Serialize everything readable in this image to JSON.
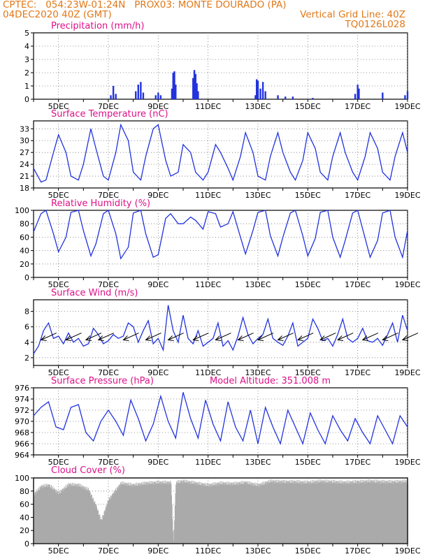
{
  "header": {
    "line1": "CPTEC:   054:23W-01:24N   PROX03: MONTE DOURADO (PA)",
    "line2": "04DEC2020 40Z (GMT)",
    "grid_note": "Vertical Grid Line: 40Z",
    "code": "TQ0126L028"
  },
  "colors": {
    "line": "#2233dd",
    "title": "#dd1188",
    "header": "#e07818",
    "cloud": "#aaaaaa"
  },
  "x_axis": {
    "start_day": 4,
    "end_day": 19,
    "tick_labels": [
      "5DEC",
      "7DEC",
      "9DEC",
      "11DEC",
      "13DEC",
      "15DEC",
      "17DEC",
      "19DEC"
    ],
    "tick_days": [
      5,
      7,
      9,
      11,
      13,
      15,
      17,
      19
    ]
  },
  "chart_data": [
    {
      "type": "bar",
      "title": "Precipitation (mm/h)",
      "ylim": [
        0,
        5
      ],
      "yticks": [
        0,
        1,
        2,
        3,
        4,
        5
      ],
      "events": [
        [
          7.1,
          0.3
        ],
        [
          7.2,
          1.0
        ],
        [
          7.3,
          0.4
        ],
        [
          8.1,
          0.6
        ],
        [
          8.2,
          1.1
        ],
        [
          8.3,
          1.3
        ],
        [
          8.4,
          0.5
        ],
        [
          8.9,
          0.3
        ],
        [
          9.0,
          0.5
        ],
        [
          9.1,
          0.3
        ],
        [
          9.55,
          0.8
        ],
        [
          9.6,
          2.0
        ],
        [
          9.65,
          2.1
        ],
        [
          9.7,
          1.1
        ],
        [
          10.4,
          1.6
        ],
        [
          10.45,
          2.2
        ],
        [
          10.5,
          1.9
        ],
        [
          10.55,
          1.2
        ],
        [
          10.6,
          0.6
        ],
        [
          12.9,
          0.3
        ],
        [
          12.95,
          1.5
        ],
        [
          13.0,
          1.4
        ],
        [
          13.1,
          0.8
        ],
        [
          13.2,
          1.3
        ],
        [
          13.3,
          0.6
        ],
        [
          13.8,
          0.3
        ],
        [
          14.1,
          0.2
        ],
        [
          14.4,
          0.2
        ],
        [
          15.2,
          0.1
        ],
        [
          16.9,
          0.4
        ],
        [
          17.0,
          1.1
        ],
        [
          17.05,
          0.8
        ],
        [
          18.0,
          0.5
        ],
        [
          18.9,
          0.3
        ],
        [
          19.0,
          0.6
        ]
      ]
    },
    {
      "type": "line",
      "title": "Surface Temperature (nC)",
      "ylim": [
        18,
        35
      ],
      "yticks": [
        18,
        21,
        24,
        27,
        30,
        33
      ],
      "series": [
        {
          "x": [
            4.0,
            4.3,
            4.5,
            4.8,
            5.0,
            5.3,
            5.5,
            5.8,
            6.0,
            6.3,
            6.5,
            6.8,
            7.0,
            7.3,
            7.5,
            7.8,
            8.0,
            8.3,
            8.5,
            8.8,
            9.0,
            9.3,
            9.5,
            9.8,
            10.0,
            10.3,
            10.5,
            10.8,
            11.0,
            11.3,
            11.5,
            11.8,
            12.0,
            12.3,
            12.5,
            12.8,
            13.0,
            13.3,
            13.5,
            13.8,
            14.0,
            14.3,
            14.5,
            14.8,
            15.0,
            15.3,
            15.5,
            15.8,
            16.0,
            16.3,
            16.5,
            16.8,
            17.0,
            17.3,
            17.5,
            17.8,
            18.0,
            18.3,
            18.5,
            18.8,
            19.0
          ],
          "y": [
            23,
            19.5,
            20,
            27,
            31.5,
            27,
            21,
            20,
            24,
            33,
            28,
            21,
            20,
            27,
            34,
            30,
            22,
            20,
            26,
            33,
            34,
            25,
            21,
            22,
            29,
            27,
            22,
            20,
            22,
            29,
            27,
            23,
            20,
            26,
            32,
            27,
            21,
            20,
            26,
            32,
            27,
            22,
            20,
            25,
            32,
            28,
            22,
            20,
            26,
            32,
            27,
            22,
            20,
            26,
            32,
            28,
            22,
            20,
            26,
            32,
            27
          ]
        }
      ]
    },
    {
      "type": "line",
      "title": "Relative Humidity (%)",
      "ylim": [
        0,
        100
      ],
      "yticks": [
        0,
        20,
        40,
        60,
        80,
        100
      ],
      "series": [
        {
          "x": [
            4.0,
            4.3,
            4.5,
            4.8,
            5.0,
            5.3,
            5.5,
            5.8,
            6.0,
            6.3,
            6.5,
            6.8,
            7.0,
            7.3,
            7.5,
            7.8,
            8.0,
            8.3,
            8.5,
            8.8,
            9.0,
            9.3,
            9.5,
            9.8,
            10.0,
            10.3,
            10.5,
            10.8,
            11.0,
            11.3,
            11.5,
            11.8,
            12.0,
            12.3,
            12.5,
            12.8,
            13.0,
            13.3,
            13.5,
            13.8,
            14.0,
            14.3,
            14.5,
            14.8,
            15.0,
            15.3,
            15.5,
            15.8,
            16.0,
            16.3,
            16.5,
            16.8,
            17.0,
            17.3,
            17.5,
            17.8,
            18.0,
            18.3,
            18.5,
            18.8,
            19.0
          ],
          "y": [
            68,
            95,
            100,
            65,
            38,
            60,
            97,
            100,
            70,
            32,
            50,
            95,
            100,
            65,
            28,
            45,
            96,
            100,
            65,
            30,
            34,
            88,
            95,
            80,
            80,
            90,
            85,
            72,
            98,
            95,
            75,
            80,
            98,
            60,
            35,
            70,
            97,
            100,
            62,
            32,
            60,
            96,
            100,
            62,
            32,
            58,
            97,
            100,
            60,
            30,
            55,
            96,
            100,
            58,
            30,
            55,
            96,
            100,
            60,
            30,
            70
          ]
        }
      ]
    },
    {
      "type": "line",
      "title": "Surface Wind (m/s)",
      "ylim": [
        1,
        9.5
      ],
      "yticks": [
        2,
        4,
        6,
        8
      ],
      "series": [
        {
          "x": [
            4.0,
            4.2,
            4.4,
            4.6,
            4.8,
            5.0,
            5.2,
            5.4,
            5.6,
            5.8,
            6.0,
            6.2,
            6.4,
            6.6,
            6.8,
            7.0,
            7.2,
            7.4,
            7.6,
            7.8,
            8.0,
            8.2,
            8.4,
            8.6,
            8.8,
            9.0,
            9.2,
            9.4,
            9.6,
            9.8,
            10.0,
            10.2,
            10.4,
            10.6,
            10.8,
            11.0,
            11.2,
            11.4,
            11.6,
            11.8,
            12.0,
            12.2,
            12.4,
            12.6,
            12.8,
            13.0,
            13.2,
            13.4,
            13.6,
            13.8,
            14.0,
            14.2,
            14.4,
            14.6,
            14.8,
            15.0,
            15.2,
            15.4,
            15.6,
            15.8,
            16.0,
            16.2,
            16.4,
            16.6,
            16.8,
            17.0,
            17.2,
            17.4,
            17.6,
            17.8,
            18.0,
            18.2,
            18.4,
            18.6,
            18.8,
            19.0
          ],
          "y": [
            2.5,
            3.5,
            5.5,
            6.5,
            4.5,
            4.8,
            3.8,
            5.2,
            4.0,
            4.5,
            3.5,
            3.8,
            5.8,
            5.0,
            3.8,
            4.2,
            5.0,
            4.5,
            4.8,
            6.5,
            6.0,
            4.0,
            5.5,
            6.8,
            3.8,
            4.5,
            3.0,
            8.8,
            5.5,
            4.0,
            7.5,
            4.5,
            3.8,
            5.5,
            3.5,
            4.0,
            4.5,
            6.5,
            3.5,
            4.2,
            3.0,
            4.8,
            7.2,
            5.0,
            3.8,
            4.5,
            5.0,
            7.0,
            4.5,
            4.0,
            3.6,
            4.8,
            6.5,
            3.5,
            4.0,
            4.5,
            7.0,
            5.8,
            4.2,
            4.5,
            3.5,
            5.0,
            7.0,
            4.5,
            4.0,
            4.5,
            5.8,
            4.2,
            4.0,
            4.5,
            3.6,
            5.0,
            6.5,
            4.0,
            7.5,
            5.5
          ]
        }
      ],
      "arrows_x": [
        4.3,
        5.3,
        6.1,
        6.6,
        7.6,
        8.5,
        9.4,
        10.4,
        11.3,
        12.2,
        13.0,
        13.8,
        14.6,
        15.5,
        16.2,
        17.2,
        18.0,
        18.8
      ]
    },
    {
      "type": "line",
      "title": "Surface Pressure (hPa)",
      "annotation": "Model Altitude: 351.008 m",
      "ylim": [
        964,
        976
      ],
      "yticks": [
        964,
        966,
        968,
        970,
        972,
        974,
        976
      ],
      "series": [
        {
          "x": [
            4.0,
            4.3,
            4.6,
            4.9,
            5.2,
            5.5,
            5.8,
            6.1,
            6.4,
            6.7,
            7.0,
            7.3,
            7.6,
            7.9,
            8.2,
            8.5,
            8.8,
            9.1,
            9.4,
            9.7,
            10.0,
            10.3,
            10.6,
            10.9,
            11.2,
            11.5,
            11.8,
            12.1,
            12.4,
            12.7,
            13.0,
            13.3,
            13.6,
            13.9,
            14.2,
            14.5,
            14.8,
            15.1,
            15.4,
            15.7,
            16.0,
            16.3,
            16.6,
            16.9,
            17.2,
            17.5,
            17.8,
            18.1,
            18.4,
            18.7,
            19.0
          ],
          "y": [
            971,
            972.5,
            973.5,
            969,
            968.5,
            972.5,
            973,
            968,
            966.5,
            970,
            972,
            970,
            967.5,
            973.8,
            970.5,
            966.5,
            969.5,
            974.5,
            970,
            967,
            975.2,
            970.5,
            967,
            973.8,
            969.5,
            966.5,
            973.5,
            969,
            966.5,
            972,
            966,
            972.5,
            969,
            966,
            972,
            969,
            966,
            971.5,
            968.5,
            966,
            971,
            968.5,
            966.5,
            970.5,
            968,
            966,
            971,
            968.5,
            966,
            971,
            969
          ]
        }
      ]
    },
    {
      "type": "area",
      "title": "Cloud Cover (%)",
      "ylim": [
        0,
        100
      ],
      "yticks": [
        0,
        20,
        40,
        60,
        80,
        100
      ],
      "series": [
        {
          "x": [
            4.0,
            4.3,
            4.6,
            5.0,
            5.4,
            5.8,
            6.2,
            6.5,
            6.7,
            6.8,
            7.0,
            7.2,
            7.5,
            8.0,
            8.5,
            9.0,
            9.5,
            9.6,
            9.7,
            10.0,
            10.5,
            11.0,
            11.5,
            12.0,
            12.5,
            13.0,
            13.5,
            14.0,
            14.5,
            15.0,
            15.5,
            16.0,
            16.5,
            17.0,
            17.5,
            18.0,
            18.5,
            19.0
          ],
          "y": [
            78,
            90,
            92,
            80,
            93,
            92,
            85,
            60,
            38,
            48,
            70,
            80,
            95,
            92,
            95,
            96,
            96,
            5,
            96,
            98,
            95,
            92,
            95,
            94,
            96,
            92,
            98,
            97,
            97,
            96,
            98,
            97,
            96,
            97,
            98,
            97,
            97,
            98
          ]
        }
      ]
    }
  ]
}
